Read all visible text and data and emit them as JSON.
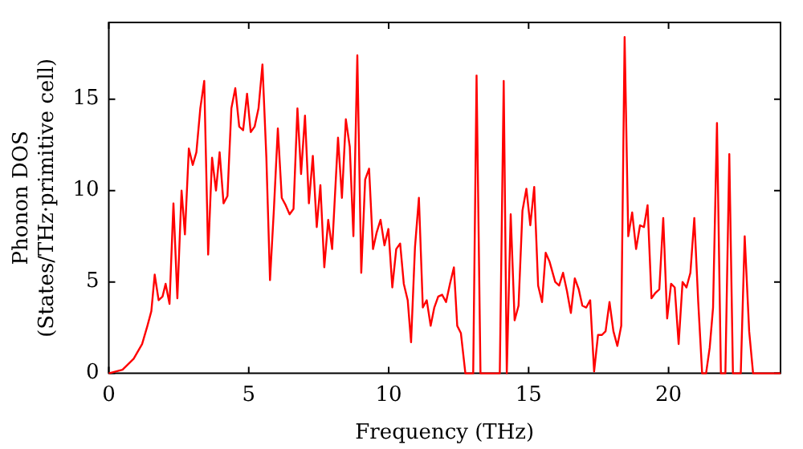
{
  "chart_data": {
    "type": "line",
    "xlabel": "Frequency (THz)",
    "ylabel": "Phonon DOS\n(States/THz·primitive cell)",
    "xlim": [
      0,
      24
    ],
    "xticks": [
      0,
      5,
      10,
      15,
      20
    ],
    "ylim": [
      0,
      19.2
    ],
    "yticks": [
      0,
      5,
      10,
      15
    ],
    "grid": false,
    "legend": false,
    "marker": "none",
    "line_style": "solid",
    "series": [
      {
        "color": "#ff0000",
        "x": [
          0.0,
          0.49,
          0.89,
          1.19,
          1.38,
          1.52,
          1.64,
          1.78,
          1.92,
          2.03,
          2.17,
          2.31,
          2.45,
          2.6,
          2.72,
          2.86,
          3.0,
          3.13,
          3.27,
          3.41,
          3.55,
          3.69,
          3.83,
          3.96,
          4.1,
          4.24,
          4.38,
          4.52,
          4.66,
          4.8,
          4.94,
          5.07,
          5.21,
          5.35,
          5.49,
          5.63,
          5.76,
          5.9,
          6.04,
          6.18,
          6.32,
          6.46,
          6.6,
          6.74,
          6.87,
          7.01,
          7.15,
          7.29,
          7.43,
          7.56,
          7.7,
          7.84,
          7.98,
          8.19,
          8.33,
          8.47,
          8.61,
          8.74,
          8.88,
          9.02,
          9.16,
          9.3,
          9.44,
          9.57,
          9.71,
          9.85,
          9.99,
          10.13,
          10.27,
          10.41,
          10.54,
          10.68,
          10.8,
          10.94,
          11.08,
          11.22,
          11.36,
          11.5,
          11.63,
          11.77,
          11.91,
          12.05,
          12.19,
          12.33,
          12.45,
          12.58,
          12.74,
          13.02,
          13.14,
          13.28,
          13.97,
          14.11,
          14.22,
          14.36,
          14.5,
          14.64,
          14.78,
          14.92,
          15.06,
          15.2,
          15.34,
          15.48,
          15.61,
          15.75,
          15.95,
          16.09,
          16.23,
          16.37,
          16.51,
          16.65,
          16.79,
          16.92,
          17.06,
          17.2,
          17.34,
          17.48,
          17.62,
          17.75,
          17.89,
          18.03,
          18.17,
          18.31,
          18.43,
          18.56,
          18.7,
          18.84,
          18.98,
          19.12,
          19.25,
          19.39,
          19.53,
          19.67,
          19.81,
          19.95,
          20.09,
          20.22,
          20.36,
          20.5,
          20.64,
          20.78,
          20.92,
          21.06,
          21.2,
          21.34,
          21.47,
          21.59,
          21.73,
          21.87,
          22.03,
          22.17,
          22.3,
          22.58,
          22.72,
          22.88,
          23.02,
          24.0
        ],
        "values": [
          0,
          0.2,
          0.8,
          1.6,
          2.6,
          3.4,
          5.4,
          4.0,
          4.2,
          4.9,
          3.8,
          9.3,
          4.1,
          10.0,
          7.6,
          12.3,
          11.4,
          12.1,
          14.5,
          16.0,
          6.5,
          11.8,
          10.0,
          12.1,
          9.3,
          9.7,
          14.5,
          15.6,
          13.5,
          13.3,
          15.3,
          13.2,
          13.5,
          14.5,
          16.9,
          11.8,
          5.1,
          9.0,
          13.4,
          9.6,
          9.2,
          8.7,
          9.0,
          14.5,
          10.9,
          14.1,
          9.3,
          11.9,
          8.0,
          10.3,
          5.8,
          8.4,
          6.8,
          12.9,
          9.6,
          13.9,
          12.4,
          7.5,
          17.4,
          5.5,
          10.6,
          11.2,
          6.8,
          7.7,
          8.4,
          7.0,
          7.9,
          4.7,
          6.8,
          7.1,
          4.9,
          4.0,
          1.7,
          6.9,
          9.6,
          3.6,
          4.0,
          2.6,
          3.6,
          4.2,
          4.3,
          3.9,
          4.9,
          5.8,
          2.6,
          2.2,
          0,
          0,
          16.3,
          0,
          0,
          16.0,
          0,
          8.7,
          2.9,
          3.7,
          8.9,
          10.1,
          8.1,
          10.2,
          4.8,
          3.9,
          6.6,
          6.1,
          5.0,
          4.8,
          5.5,
          4.5,
          3.3,
          5.2,
          4.6,
          3.7,
          3.6,
          4.0,
          0.1,
          2.1,
          2.1,
          2.3,
          3.9,
          2.3,
          1.5,
          2.6,
          18.4,
          7.5,
          8.8,
          6.8,
          8.1,
          8.0,
          9.2,
          4.1,
          4.4,
          4.6,
          8.5,
          3.0,
          4.9,
          4.7,
          1.6,
          5.0,
          4.7,
          5.5,
          8.5,
          3.9,
          0,
          0,
          1.4,
          3.6,
          13.7,
          0,
          0,
          12.0,
          0,
          0,
          7.5,
          2.3,
          0,
          0
        ]
      }
    ]
  }
}
